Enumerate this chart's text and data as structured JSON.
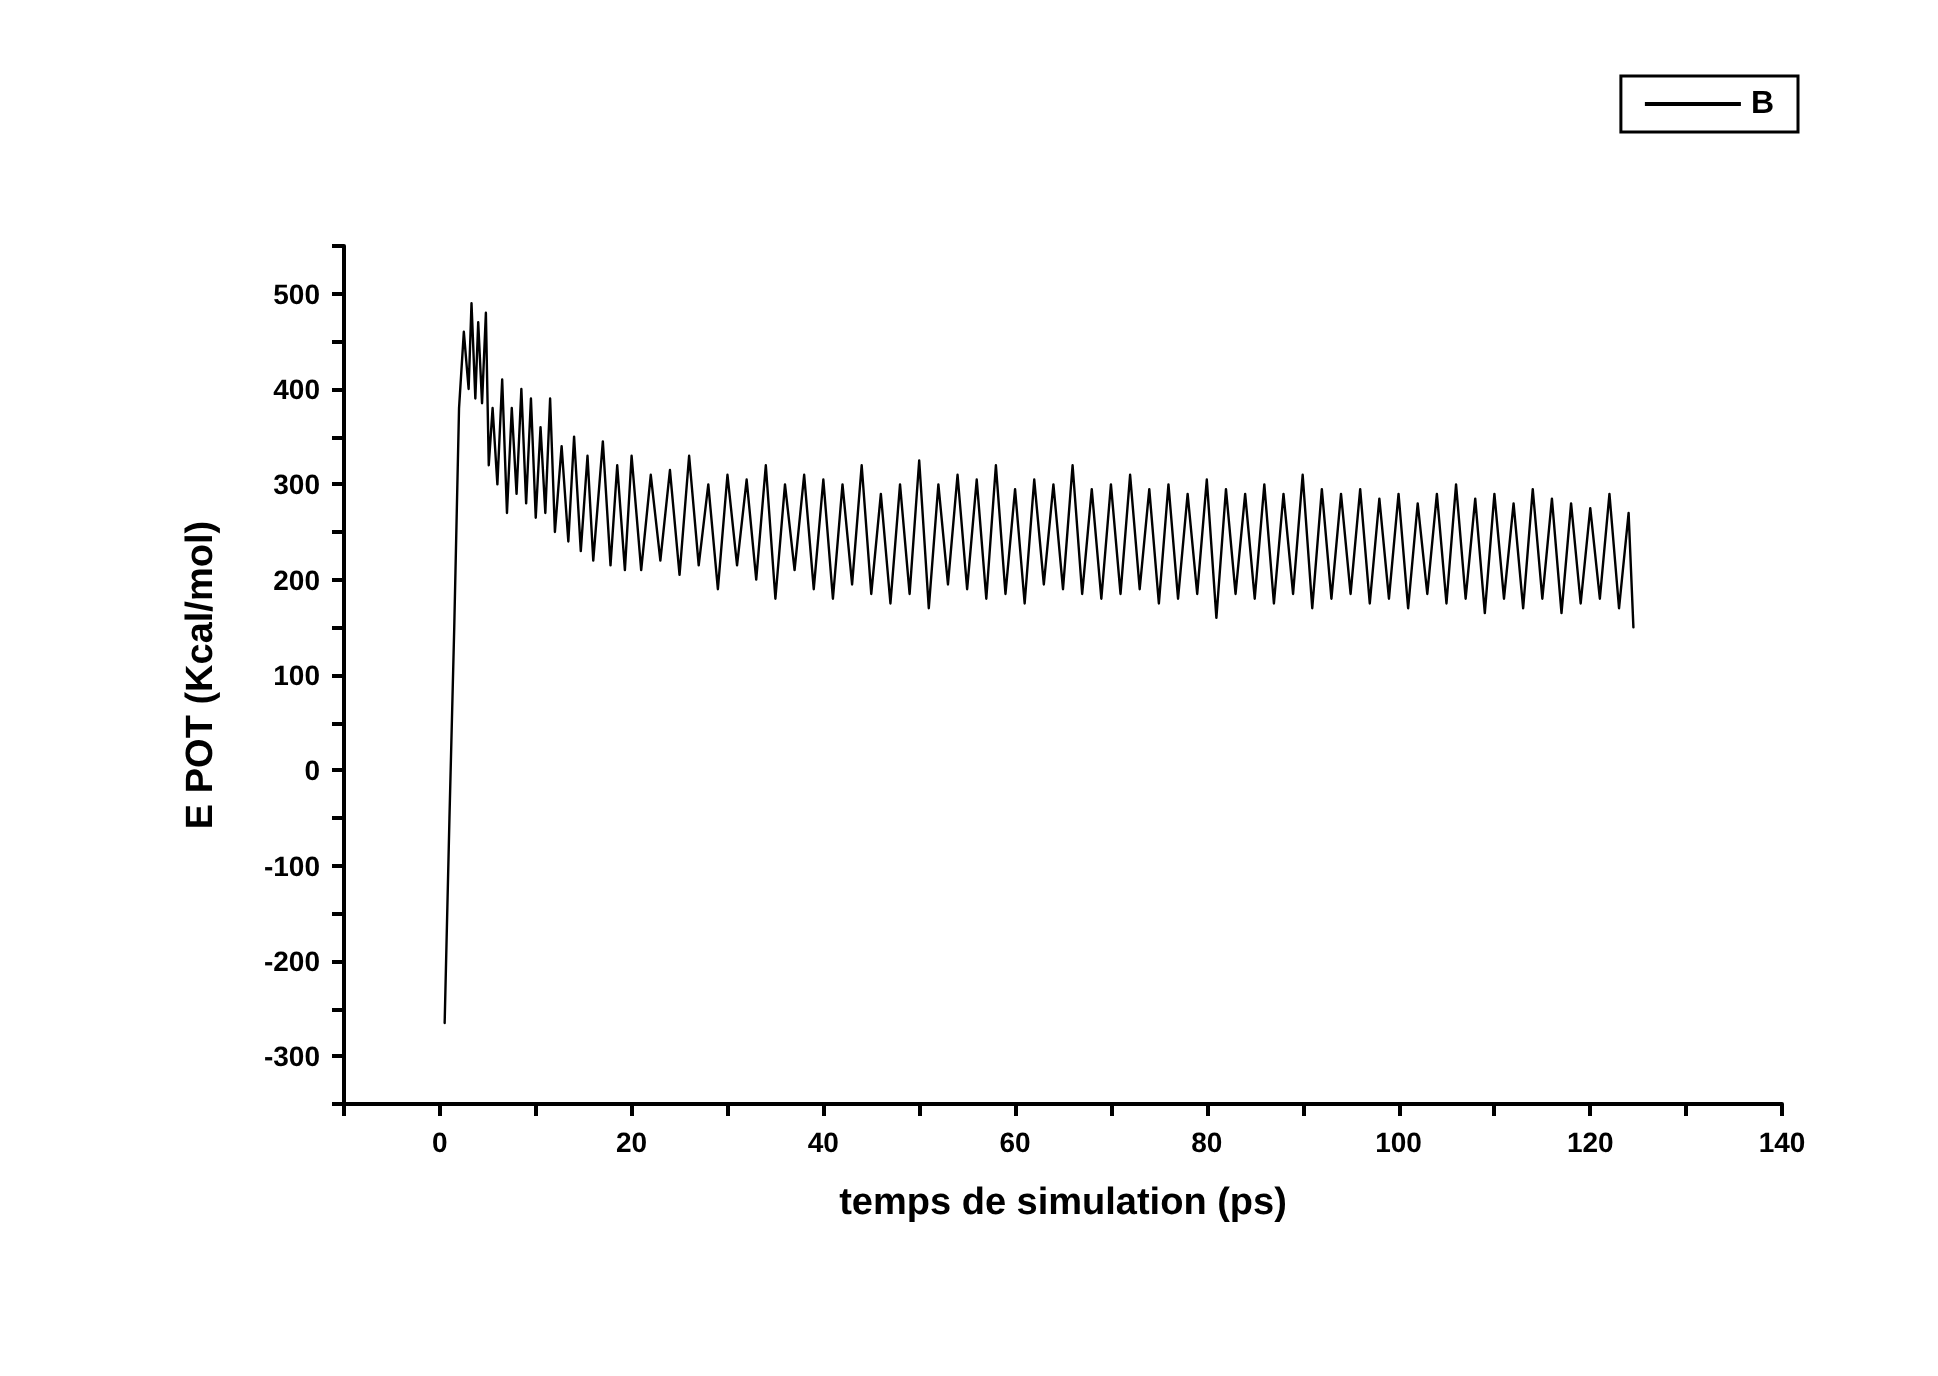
{
  "chart_data": {
    "type": "line",
    "xlabel": "temps de simulation (ps)",
    "ylabel": "E POT (Kcal/mol)",
    "xlim": [
      -10,
      140
    ],
    "xticks": [
      {
        "value": -10,
        "label": null
      },
      0,
      {
        "value": 10,
        "label": null
      },
      20,
      {
        "value": 30,
        "label": null
      },
      40,
      {
        "value": 50,
        "label": null
      },
      60,
      {
        "value": 70,
        "label": null
      },
      80,
      {
        "value": 90,
        "label": null
      },
      100,
      {
        "value": 110,
        "label": null
      },
      120,
      {
        "value": 130,
        "label": null
      },
      140
    ],
    "ylim": [
      -350,
      550
    ],
    "yticks": [
      {
        "value": -350,
        "label": null
      },
      -300,
      {
        "value": -250,
        "label": null
      },
      -200,
      {
        "value": -150,
        "label": null
      },
      -100,
      {
        "value": -50,
        "label": null
      },
      0,
      {
        "value": 50,
        "label": null
      },
      100,
      {
        "value": 150,
        "label": null
      },
      200,
      {
        "value": 250,
        "label": null
      },
      300,
      {
        "value": 350,
        "label": null
      },
      400,
      {
        "value": 450,
        "label": null
      },
      500,
      {
        "value": 550,
        "label": null
      }
    ],
    "grid": false,
    "legend": "top right",
    "marker": "none",
    "line_style": "solid",
    "series": [
      {
        "name": "B",
        "color": "#000000",
        "x": [
          0.5,
          1,
          1.5,
          2,
          2.5,
          3,
          3.3,
          3.7,
          4,
          4.4,
          4.8,
          5.1,
          5.5,
          6,
          6.5,
          7,
          7.5,
          8,
          8.5,
          9,
          9.5,
          10,
          10.5,
          11,
          11.5,
          12,
          12.7,
          13.4,
          14,
          14.7,
          15.4,
          16,
          17,
          17.8,
          18.5,
          19.3,
          20,
          21,
          22,
          23,
          24,
          25,
          26,
          27,
          28,
          29,
          30,
          31,
          32,
          33,
          34,
          35,
          36,
          37,
          38,
          39,
          40,
          41,
          42,
          43,
          44,
          45,
          46,
          47,
          48,
          49,
          50,
          51,
          52,
          53,
          54,
          55,
          56,
          57,
          58,
          59,
          60,
          61,
          62,
          63,
          64,
          65,
          66,
          67,
          68,
          69,
          70,
          71,
          72,
          73,
          74,
          75,
          76,
          77,
          78,
          79,
          80,
          81,
          82,
          83,
          84,
          85,
          86,
          87,
          88,
          89,
          90,
          91,
          92,
          93,
          94,
          95,
          96,
          97,
          98,
          99,
          100,
          101,
          102,
          103,
          104,
          105,
          106,
          107,
          108,
          109,
          110,
          111,
          112,
          113,
          114,
          115,
          116,
          117,
          118,
          119,
          120,
          121,
          122,
          123,
          124,
          124.5
        ],
        "values": [
          -265,
          -50,
          150,
          380,
          460,
          400,
          490,
          390,
          470,
          385,
          480,
          320,
          380,
          300,
          410,
          270,
          380,
          290,
          400,
          280,
          390,
          265,
          360,
          270,
          390,
          250,
          340,
          240,
          350,
          230,
          330,
          220,
          345,
          215,
          320,
          210,
          330,
          210,
          310,
          220,
          315,
          205,
          330,
          215,
          300,
          190,
          310,
          215,
          305,
          200,
          320,
          180,
          300,
          210,
          310,
          190,
          305,
          180,
          300,
          195,
          320,
          185,
          290,
          175,
          300,
          185,
          325,
          170,
          300,
          195,
          310,
          190,
          305,
          180,
          320,
          185,
          295,
          175,
          305,
          195,
          300,
          190,
          320,
          185,
          295,
          180,
          300,
          185,
          310,
          190,
          295,
          175,
          300,
          180,
          290,
          185,
          305,
          160,
          295,
          185,
          290,
          180,
          300,
          175,
          290,
          185,
          310,
          170,
          295,
          180,
          290,
          185,
          295,
          175,
          285,
          180,
          290,
          170,
          280,
          185,
          290,
          175,
          300,
          180,
          285,
          165,
          290,
          180,
          280,
          170,
          295,
          180,
          285,
          165,
          280,
          175,
          275,
          180,
          290,
          170,
          270,
          150
        ]
      }
    ]
  }
}
